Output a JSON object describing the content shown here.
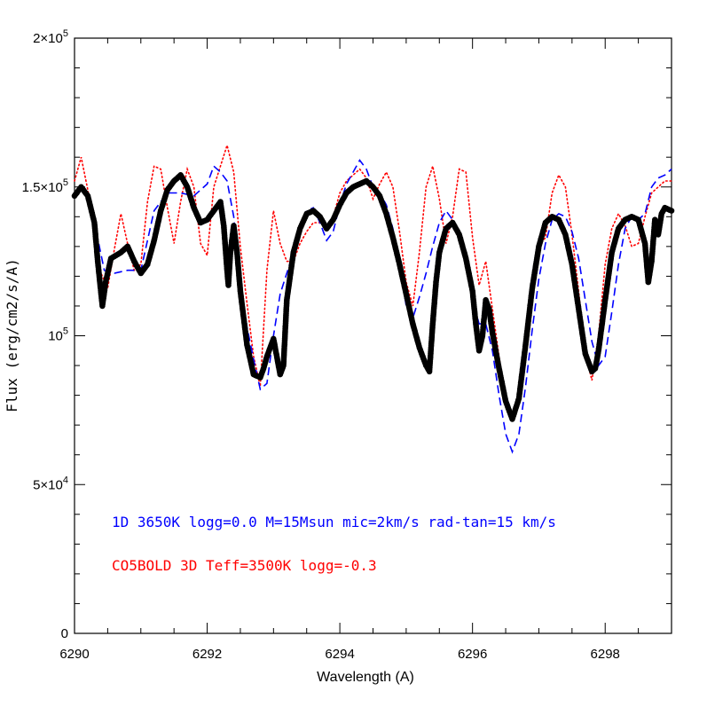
{
  "chart_data": {
    "type": "line",
    "xlabel": "Wavelength (A)",
    "ylabel": "Flux (erg/cm2/s/A)",
    "xlim": [
      6290,
      6299
    ],
    "ylim": [
      0,
      200000
    ],
    "x_ticks": [
      6290,
      6292,
      6294,
      6296,
      6298
    ],
    "x_tick_labels": [
      "6290",
      "6292",
      "6294",
      "6296",
      "6298"
    ],
    "y_ticks": [
      0,
      50000,
      100000,
      150000,
      200000
    ],
    "y_tick_labels": [
      {
        "mantissa": "0",
        "exp": ""
      },
      {
        "mantissa": "5×10",
        "exp": "4"
      },
      {
        "mantissa": "10",
        "exp": "5"
      },
      {
        "mantissa": "1.5×10",
        "exp": "5"
      },
      {
        "mantissa": "2×10",
        "exp": "5"
      }
    ],
    "annotations": [
      {
        "text": "1D 3650K logg=0.0 M=15Msun mic=2km/s rad-tan=15 km/s",
        "color": "#0000ff"
      },
      {
        "text": "CO5BOLD 3D Teff=3500K logg=-0.3",
        "color": "#ff0000"
      }
    ],
    "series": [
      {
        "style": "black-dots-line",
        "color": "#000000",
        "x": [
          6290.0,
          6290.1,
          6290.2,
          6290.3,
          6290.35,
          6290.42,
          6290.47,
          6290.55,
          6290.7,
          6290.8,
          6290.9,
          6291.0,
          6291.1,
          6291.2,
          6291.3,
          6291.4,
          6291.5,
          6291.6,
          6291.7,
          6291.8,
          6291.9,
          6292.0,
          6292.1,
          6292.2,
          6292.25,
          6292.3,
          6292.32,
          6292.35,
          6292.4,
          6292.45,
          6292.5,
          6292.6,
          6292.7,
          6292.8,
          6292.85,
          6292.9,
          6293.0,
          6293.05,
          6293.1,
          6293.15,
          6293.2,
          6293.3,
          6293.4,
          6293.5,
          6293.6,
          6293.7,
          6293.8,
          6293.9,
          6294.0,
          6294.1,
          6294.2,
          6294.3,
          6294.4,
          6294.5,
          6294.6,
          6294.7,
          6294.8,
          6294.9,
          6295.0,
          6295.1,
          6295.2,
          6295.3,
          6295.35,
          6295.4,
          6295.45,
          6295.5,
          6295.6,
          6295.7,
          6295.8,
          6295.9,
          6296.0,
          6296.05,
          6296.1,
          6296.15,
          6296.2,
          6296.25,
          6296.3,
          6296.4,
          6296.5,
          6296.6,
          6296.7,
          6296.8,
          6296.9,
          6297.0,
          6297.1,
          6297.2,
          6297.3,
          6297.4,
          6297.5,
          6297.6,
          6297.7,
          6297.8,
          6297.85,
          6297.9,
          6298.0,
          6298.1,
          6298.2,
          6298.3,
          6298.4,
          6298.5,
          6298.6,
          6298.65,
          6298.7,
          6298.75,
          6298.8,
          6298.85,
          6298.9,
          6299.0
        ],
        "y": [
          147000,
          150000,
          147000,
          138000,
          125000,
          110000,
          118000,
          126000,
          128000,
          130000,
          125000,
          121000,
          124000,
          132000,
          142000,
          149000,
          152000,
          154000,
          150000,
          143000,
          138000,
          139000,
          142000,
          145000,
          137000,
          122000,
          117000,
          128000,
          137000,
          128000,
          115000,
          97000,
          87000,
          86000,
          89000,
          93000,
          99000,
          93000,
          87000,
          90000,
          112000,
          128000,
          136000,
          141000,
          142000,
          140000,
          136000,
          139000,
          144000,
          148000,
          150000,
          151000,
          152000,
          150000,
          147000,
          141000,
          133000,
          124000,
          114000,
          104000,
          96000,
          90000,
          88000,
          104000,
          118000,
          128000,
          136000,
          138000,
          134000,
          126000,
          115000,
          104000,
          95000,
          100000,
          112000,
          109000,
          101000,
          89000,
          78000,
          72000,
          79000,
          97000,
          116000,
          130000,
          138000,
          140000,
          139000,
          134000,
          124000,
          109000,
          94000,
          88000,
          89000,
          95000,
          112000,
          128000,
          136000,
          139000,
          140000,
          139000,
          131000,
          118000,
          125000,
          139000,
          134000,
          141000,
          143000,
          142000
        ]
      },
      {
        "style": "blue-dashed",
        "color": "#0000ff",
        "x": [
          6290.0,
          6290.1,
          6290.2,
          6290.3,
          6290.45,
          6290.6,
          6290.8,
          6291.0,
          6291.2,
          6291.4,
          6291.6,
          6291.8,
          6292.0,
          6292.1,
          6292.2,
          6292.3,
          6292.4,
          6292.5,
          6292.6,
          6292.7,
          6292.8,
          6292.9,
          6293.0,
          6293.1,
          6293.2,
          6293.3,
          6293.4,
          6293.5,
          6293.6,
          6293.7,
          6293.8,
          6293.9,
          6294.0,
          6294.1,
          6294.2,
          6294.3,
          6294.4,
          6294.5,
          6294.6,
          6294.7,
          6294.8,
          6294.9,
          6295.0,
          6295.1,
          6295.2,
          6295.3,
          6295.4,
          6295.5,
          6295.6,
          6295.7,
          6295.8,
          6295.9,
          6296.0,
          6296.1,
          6296.2,
          6296.3,
          6296.4,
          6296.5,
          6296.6,
          6296.7,
          6296.8,
          6296.9,
          6297.0,
          6297.1,
          6297.2,
          6297.3,
          6297.4,
          6297.5,
          6297.6,
          6297.7,
          6297.8,
          6297.9,
          6298.0,
          6298.1,
          6298.2,
          6298.3,
          6298.4,
          6298.5,
          6298.6,
          6298.7,
          6298.8,
          6298.9,
          6299.0
        ],
        "y": [
          148000,
          151000,
          148000,
          138000,
          122000,
          121000,
          122000,
          122000,
          142000,
          148000,
          148000,
          147000,
          151000,
          157000,
          155000,
          152000,
          140000,
          118000,
          103000,
          92000,
          82000,
          84000,
          100000,
          114000,
          121000,
          128000,
          135000,
          142000,
          143000,
          138000,
          132000,
          135000,
          144000,
          151000,
          155000,
          159000,
          156000,
          150000,
          148000,
          144000,
          136000,
          124000,
          110000,
          106000,
          113000,
          121000,
          130000,
          138000,
          142000,
          139000,
          133000,
          124000,
          112000,
          104000,
          104000,
          95000,
          80000,
          67000,
          61000,
          67000,
          83000,
          102000,
          119000,
          131000,
          139000,
          141000,
          140000,
          135000,
          126000,
          112000,
          98000,
          90000,
          93000,
          108000,
          124000,
          136000,
          140000,
          139000,
          141000,
          150000,
          153000,
          154000,
          156000
        ]
      },
      {
        "style": "red-dotted",
        "color": "#ff0000",
        "x": [
          6290.0,
          6290.1,
          6290.2,
          6290.3,
          6290.4,
          6290.5,
          6290.6,
          6290.7,
          6290.8,
          6290.9,
          6291.0,
          6291.1,
          6291.2,
          6291.3,
          6291.4,
          6291.5,
          6291.6,
          6291.7,
          6291.8,
          6291.9,
          6292.0,
          6292.1,
          6292.2,
          6292.3,
          6292.4,
          6292.5,
          6292.6,
          6292.7,
          6292.8,
          6292.9,
          6293.0,
          6293.1,
          6293.2,
          6293.3,
          6293.4,
          6293.5,
          6293.6,
          6293.7,
          6293.8,
          6293.9,
          6294.0,
          6294.1,
          6294.2,
          6294.3,
          6294.4,
          6294.5,
          6294.6,
          6294.7,
          6294.8,
          6294.9,
          6295.0,
          6295.1,
          6295.2,
          6295.3,
          6295.4,
          6295.5,
          6295.6,
          6295.7,
          6295.8,
          6295.9,
          6296.0,
          6296.1,
          6296.2,
          6296.3,
          6296.4,
          6296.5,
          6296.6,
          6296.7,
          6296.8,
          6296.9,
          6297.0,
          6297.1,
          6297.2,
          6297.3,
          6297.4,
          6297.5,
          6297.6,
          6297.7,
          6297.8,
          6297.9,
          6298.0,
          6298.1,
          6298.2,
          6298.3,
          6298.4,
          6298.5,
          6298.6,
          6298.7,
          6298.8,
          6298.9,
          6299.0
        ],
        "y": [
          152000,
          160000,
          149000,
          134000,
          121000,
          116000,
          129000,
          141000,
          131000,
          122000,
          124000,
          145000,
          157000,
          156000,
          143000,
          131000,
          145000,
          156000,
          150000,
          131000,
          127000,
          150000,
          157000,
          164000,
          155000,
          130000,
          111000,
          93000,
          83000,
          122000,
          142000,
          131000,
          125000,
          125000,
          131000,
          135000,
          138000,
          138000,
          136000,
          140000,
          148000,
          152000,
          154000,
          156000,
          153000,
          146000,
          151000,
          155000,
          150000,
          135000,
          118000,
          110000,
          128000,
          150000,
          157000,
          146000,
          131000,
          140000,
          156000,
          155000,
          133000,
          117000,
          125000,
          109000,
          93000,
          78000,
          72000,
          79000,
          95000,
          118000,
          130000,
          133000,
          148000,
          154000,
          150000,
          134000,
          115000,
          94000,
          85000,
          100000,
          124000,
          136000,
          141000,
          137000,
          130000,
          131000,
          140000,
          148000,
          150000,
          152000,
          152000
        ]
      }
    ]
  }
}
